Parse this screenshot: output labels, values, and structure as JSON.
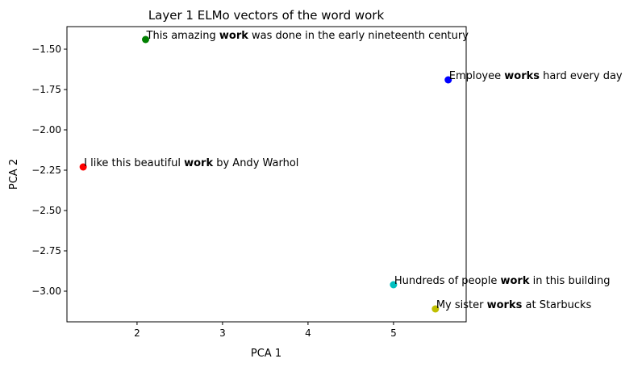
{
  "chart_data": {
    "type": "scatter",
    "title": "Layer 1 ELMo vectors of the word work",
    "xlabel": "PCA 1",
    "ylabel": "PCA 2",
    "xlim": [
      1.18,
      5.85
    ],
    "ylim": [
      -3.19,
      -1.36
    ],
    "xticks": [
      2,
      3,
      4,
      5
    ],
    "yticks": [
      -1.5,
      -1.75,
      -2.0,
      -2.25,
      -2.5,
      -2.75,
      -3.0
    ],
    "ytick_labels": [
      "−1.50",
      "−1.75",
      "−2.00",
      "−2.25",
      "−2.50",
      "−2.75",
      "−3.00"
    ],
    "grid": false,
    "points": [
      {
        "x": 2.1,
        "y": -1.44,
        "color": "#008000",
        "pre": "This amazing ",
        "bold": "work",
        "post": " was done in the early nineteenth century"
      },
      {
        "x": 5.64,
        "y": -1.69,
        "color": "#0000ff",
        "pre": "Employee ",
        "bold": "works",
        "post": " hard every day"
      },
      {
        "x": 1.37,
        "y": -2.23,
        "color": "#ff0000",
        "pre": "I like this beautiful ",
        "bold": "work",
        "post": " by Andy Warhol"
      },
      {
        "x": 5.0,
        "y": -2.96,
        "color": "#00bfbf",
        "pre": "Hundreds of people ",
        "bold": "work",
        "post": " in this building"
      },
      {
        "x": 5.49,
        "y": -3.11,
        "color": "#bfbf00",
        "pre": "My sister ",
        "bold": "works",
        "post": " at Starbucks"
      }
    ]
  }
}
